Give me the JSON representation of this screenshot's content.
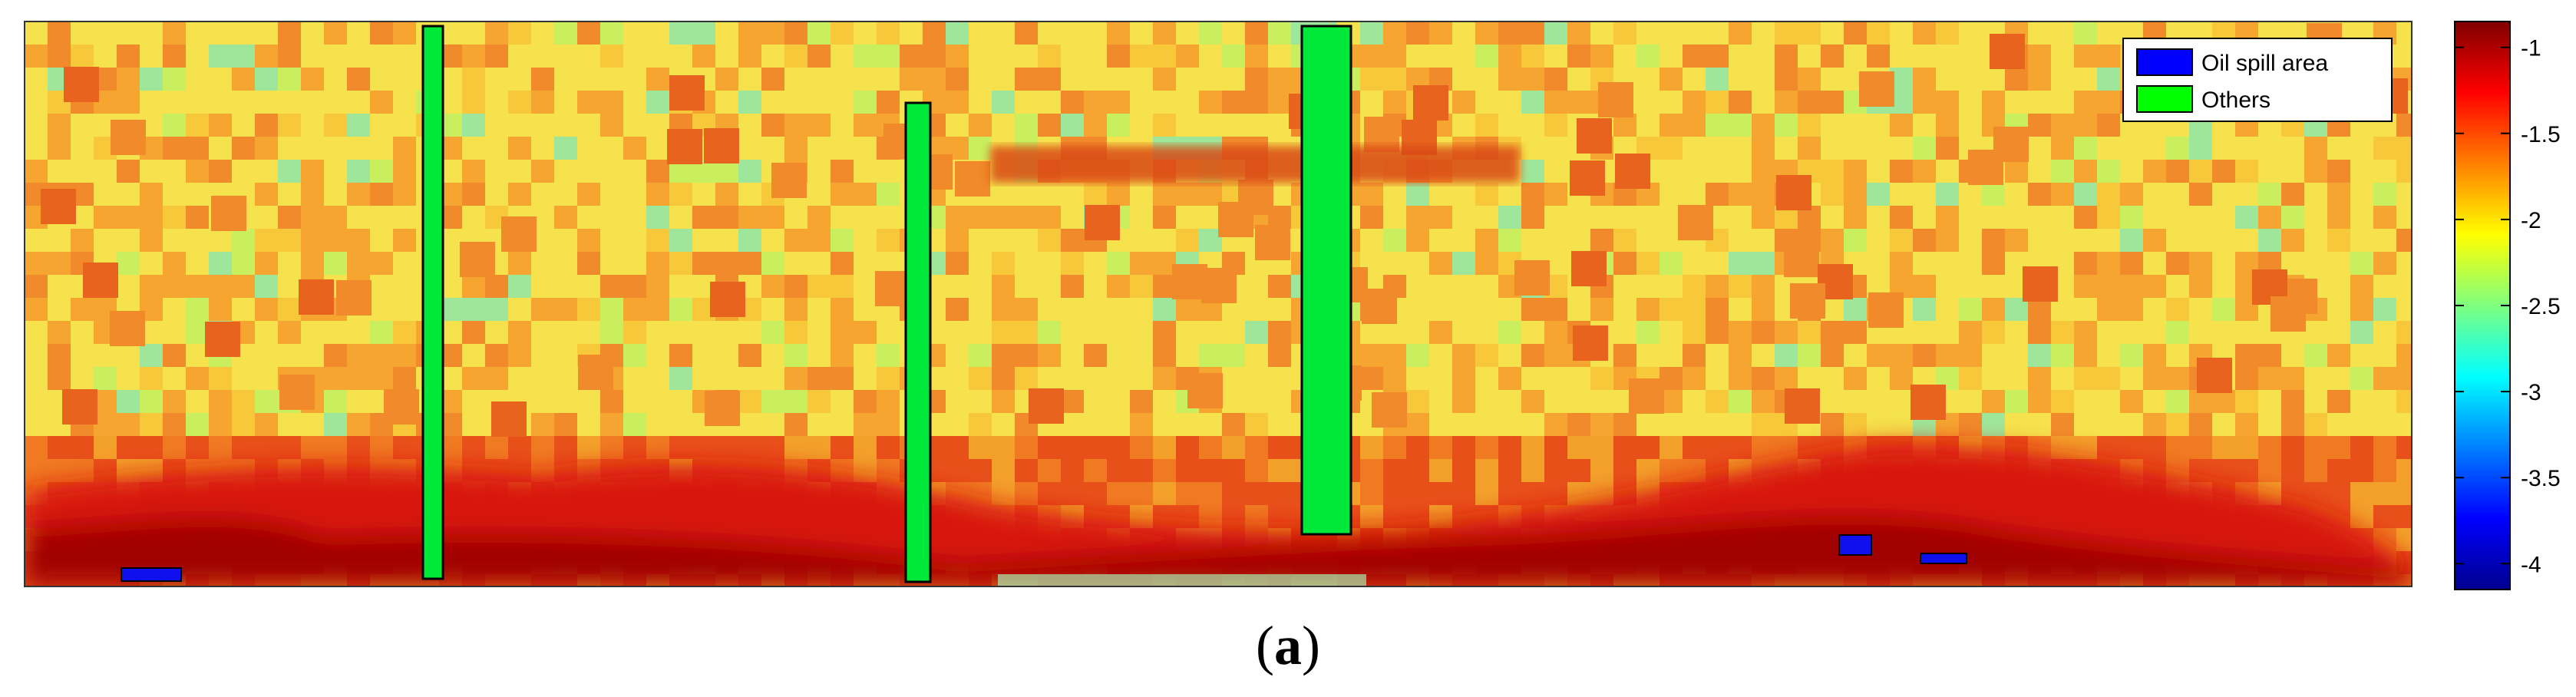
{
  "chart_data": {
    "type": "heatmap",
    "title": "",
    "xlabel": "",
    "ylabel": "",
    "colormap": "jet",
    "colorbar": {
      "range": [
        -4.15,
        -0.85
      ],
      "ticks": [
        -1,
        -1.5,
        -2,
        -2.5,
        -3,
        -3.5,
        -4
      ],
      "tick_labels": [
        "-1",
        "-1.5",
        "-2",
        "-2.5",
        "-3",
        "-3.5",
        "-4"
      ]
    },
    "legend": {
      "placement": "top-right",
      "entries": [
        {
          "label": "Oil spill area",
          "color": "#0000ff"
        },
        {
          "label": "Others",
          "color": "#00ff00"
        }
      ]
    },
    "grid": false
  },
  "caption": {
    "open": "(",
    "letter": "a",
    "close": ")"
  }
}
